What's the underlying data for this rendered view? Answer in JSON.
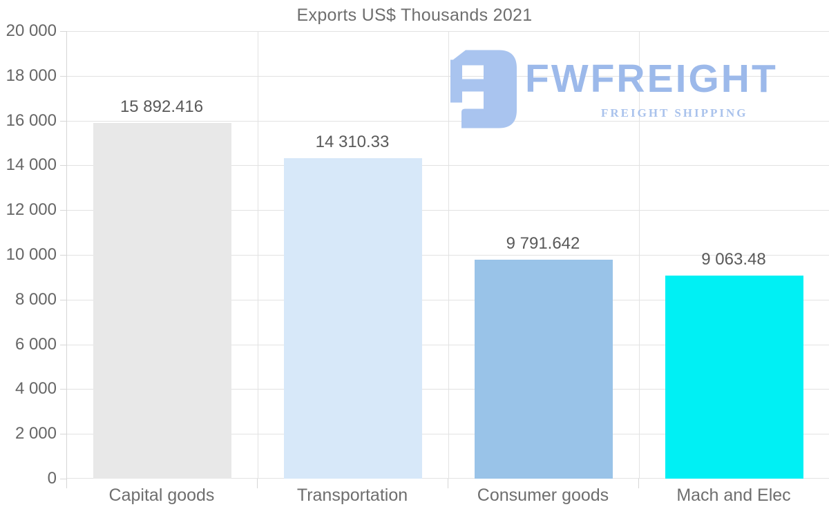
{
  "chart_data": {
    "type": "bar",
    "title": "Exports US$ Thousands 2021",
    "categories": [
      "Capital goods",
      "Transportation",
      "Consumer goods",
      "Mach and Elec"
    ],
    "values": [
      15892.416,
      14310.33,
      9791.642,
      9063.48
    ],
    "value_labels": [
      "15 892.416",
      "14 310.33",
      "9 791.642",
      "9 063.48"
    ],
    "bar_colors": [
      "#e8e8e8",
      "#d7e8f9",
      "#99c3e8",
      "#00f0f4"
    ],
    "xlabel": "",
    "ylabel": "",
    "ylim": [
      0,
      20000
    ],
    "ytick_step": 2000,
    "ytick_labels": [
      "0",
      "2 000",
      "4 000",
      "6 000",
      "8 000",
      "10 000",
      "12 000",
      "14 000",
      "16 000",
      "18 000",
      "20 000"
    ],
    "grid": true,
    "legend": "none"
  },
  "logo": {
    "name": "FWFREIGHT",
    "tagline": "FREIGHT SHIPPING",
    "icon_color": "#a9c4ef",
    "name_color": "#9cb9ea",
    "tagline_color": "#a9c2ec"
  },
  "style_colors": {
    "gridline": "#e2e2e2",
    "axis": "#d6d6d6",
    "title_text": "#6e6e6e",
    "tick_text": "#666666",
    "value_text": "#595959",
    "background": "#ffffff"
  }
}
